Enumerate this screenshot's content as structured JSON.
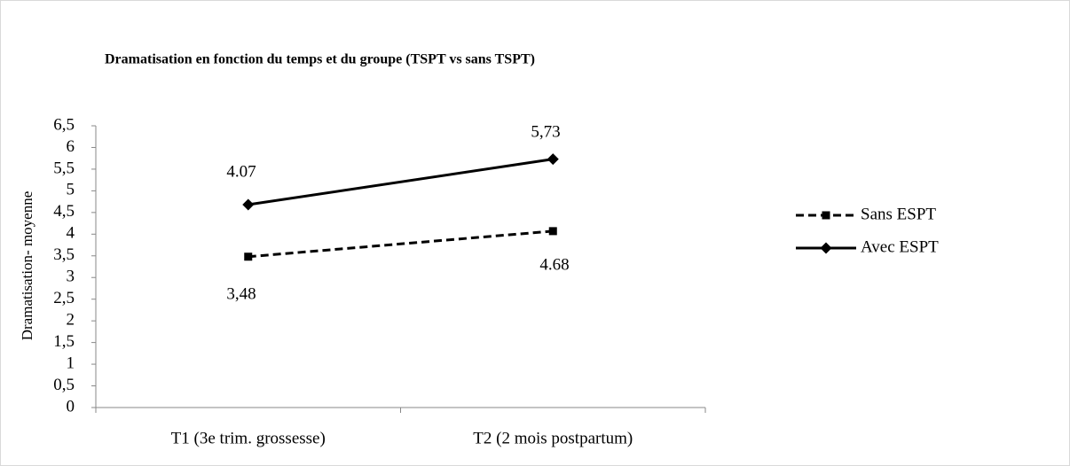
{
  "chart_data": {
    "type": "line",
    "title": "Dramatisation en fonction du temps et du groupe (TSPT vs sans TSPT)",
    "y_label": "Dramatisation- moyenne",
    "categories": [
      "T1 (3e trim. grossesse)",
      "T2 (2 mois postpartum)"
    ],
    "series": [
      {
        "name": "Sans ESPT",
        "color": "#000000",
        "dash": "dashed",
        "marker": "square",
        "values": [
          3.48,
          4.07
        ]
      },
      {
        "name": "Avec ESPT",
        "color": "#000000",
        "dash": "solid",
        "marker": "diamond",
        "values": [
          4.68,
          5.73
        ]
      }
    ],
    "annotations": [
      "4.07",
      "5,73",
      "3,48",
      "4.68"
    ],
    "ylim": [
      0,
      6.5
    ],
    "yticks": [
      0,
      {
        "value": 0.5,
        "label": "0,5"
      },
      1,
      {
        "value": 1.5,
        "label": "1,5"
      },
      2,
      {
        "value": 2.5,
        "label": "2,5"
      },
      3,
      {
        "value": 3.5,
        "label": "3,5"
      },
      4,
      {
        "value": 4.5,
        "label": "4,5"
      },
      5,
      {
        "value": 5.5,
        "label": "5,5"
      },
      6,
      {
        "value": 6.5,
        "label": "6,5"
      }
    ],
    "legend": "right"
  }
}
